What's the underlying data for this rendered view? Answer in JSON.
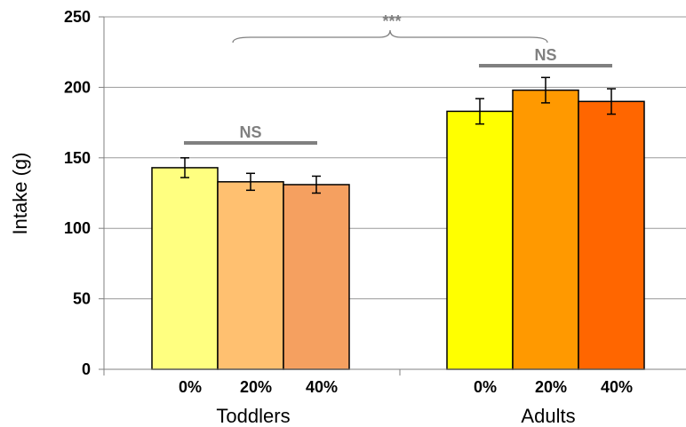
{
  "chart_data": {
    "type": "bar",
    "title": "",
    "ylabel": "Intake (g)",
    "ylim": [
      0,
      250
    ],
    "yticks": [
      0,
      50,
      100,
      150,
      200,
      250
    ],
    "grid": true,
    "groups": [
      {
        "name": "Toddlers",
        "bars": [
          {
            "label": "0%",
            "value": 143,
            "error": 7,
            "color": "#FFFF80"
          },
          {
            "label": "20%",
            "value": 133,
            "error": 6,
            "color": "#FFC070"
          },
          {
            "label": "40%",
            "value": 131,
            "error": 6,
            "color": "#F5A060"
          }
        ],
        "significance": "NS"
      },
      {
        "name": "Adults",
        "bars": [
          {
            "label": "0%",
            "value": 183,
            "error": 9,
            "color": "#FFFF00"
          },
          {
            "label": "20%",
            "value": 198,
            "error": 9,
            "color": "#FF9900"
          },
          {
            "label": "40%",
            "value": 190,
            "error": 9,
            "color": "#FF6600"
          }
        ],
        "significance": "NS"
      }
    ],
    "between_groups_significance": "***"
  }
}
